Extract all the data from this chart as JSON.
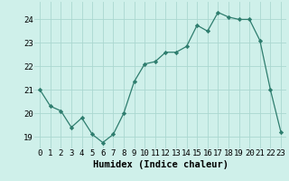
{
  "x": [
    0,
    1,
    2,
    3,
    4,
    5,
    6,
    7,
    8,
    9,
    10,
    11,
    12,
    13,
    14,
    15,
    16,
    17,
    18,
    19,
    20,
    21,
    22,
    23
  ],
  "y": [
    21.0,
    20.3,
    20.1,
    19.4,
    19.8,
    19.1,
    18.75,
    19.1,
    20.0,
    21.35,
    22.1,
    22.2,
    22.6,
    22.6,
    22.85,
    23.75,
    23.5,
    24.3,
    24.1,
    24.0,
    24.0,
    23.1,
    21.0,
    19.2
  ],
  "line_color": "#2e7d6e",
  "marker": "D",
  "marker_size": 2.2,
  "bg_color": "#cff0ea",
  "grid_color": "#aad8d0",
  "xlabel": "Humidex (Indice chaleur)",
  "xlabel_fontsize": 7.5,
  "tick_fontsize": 6.5,
  "ylim": [
    18.5,
    24.75
  ],
  "yticks": [
    19,
    20,
    21,
    22,
    23,
    24
  ],
  "xticks": [
    0,
    1,
    2,
    3,
    4,
    5,
    6,
    7,
    8,
    9,
    10,
    11,
    12,
    13,
    14,
    15,
    16,
    17,
    18,
    19,
    20,
    21,
    22,
    23
  ]
}
